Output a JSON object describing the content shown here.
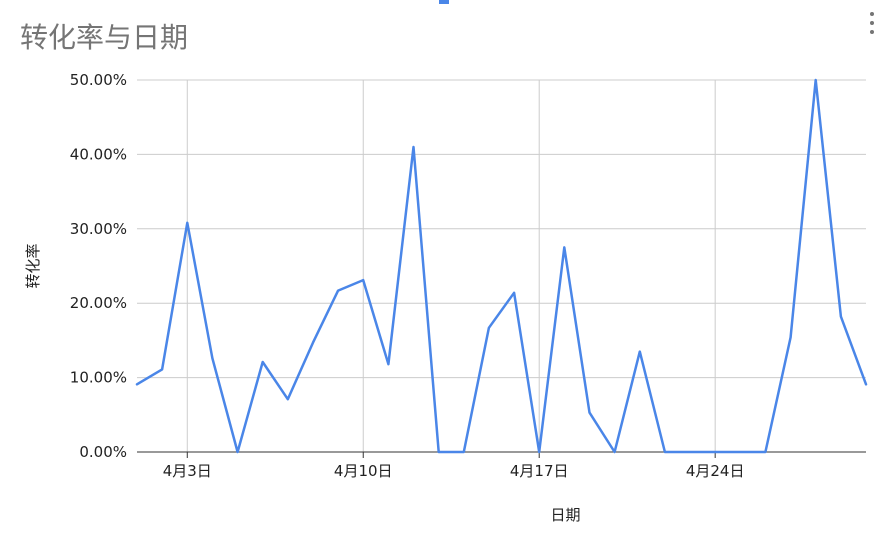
{
  "colors": {
    "line": "#4a86e8",
    "grid": "#cccccc",
    "title": "#757575",
    "axis_text": "#222222"
  },
  "icons": {
    "menu": "vertical-ellipsis-icon"
  },
  "chart_data": {
    "type": "line",
    "title": "转化率与日期",
    "xlabel": "日期",
    "ylabel": "转化率",
    "ylim": [
      0,
      50
    ],
    "y_ticks": [
      "0.00%",
      "10.00%",
      "20.00%",
      "30.00%",
      "40.00%",
      "50.00%"
    ],
    "y_tick_values": [
      0,
      10,
      20,
      30,
      40,
      50
    ],
    "x_tick_labels": [
      "4月3日",
      "4月10日",
      "4月17日",
      "4月24日"
    ],
    "x_tick_days": [
      3,
      10,
      17,
      24
    ],
    "x_range_days": [
      1,
      30
    ],
    "grid": true,
    "series": [
      {
        "days": [
          1,
          2,
          3,
          4,
          5,
          6,
          7,
          8,
          9,
          10,
          11,
          12,
          13,
          14,
          15,
          16,
          17,
          18,
          19,
          20,
          21,
          22,
          23,
          24,
          25,
          26,
          27,
          28,
          29,
          30
        ],
        "values": [
          9.1,
          11.1,
          30.8,
          12.6,
          0.0,
          12.1,
          7.1,
          14.7,
          21.7,
          23.1,
          11.8,
          41.0,
          0.0,
          0.0,
          16.7,
          21.4,
          0.0,
          27.5,
          5.3,
          0.0,
          13.5,
          0.0,
          0.0,
          0.0,
          0.0,
          0.0,
          15.4,
          50.0,
          18.2,
          9.1
        ]
      }
    ]
  }
}
